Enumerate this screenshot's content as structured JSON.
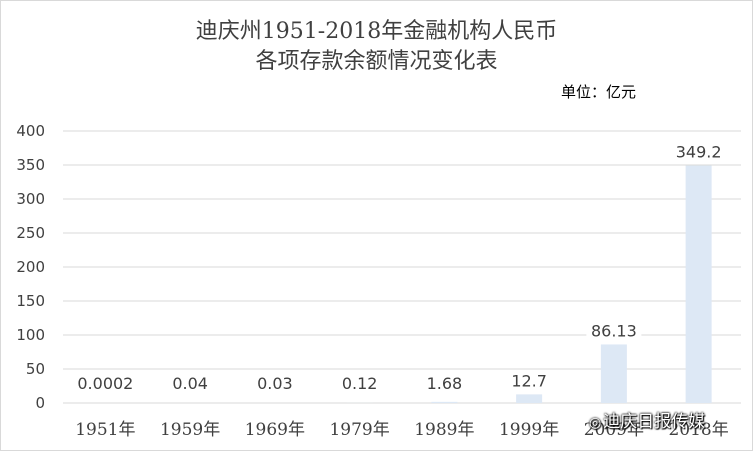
{
  "chart_data": {
    "type": "bar",
    "title_lines": [
      "迪庆州1951-2018年金融机构人民币",
      "各项存款余额情况变化表"
    ],
    "unit_label": "单位：亿元",
    "categories": [
      "1951年",
      "1959年",
      "1969年",
      "1979年",
      "1989年",
      "1999年",
      "2009年",
      "2018年"
    ],
    "values": [
      0.0002,
      0.04,
      0.03,
      0.12,
      1.68,
      12.7,
      86.13,
      349.2
    ],
    "data_labels": [
      "0.0002",
      "0.04",
      "0.03",
      "0.12",
      "1.68",
      "12.7",
      "86.13",
      "349.2"
    ],
    "ylim": [
      0,
      400
    ],
    "yticks": [
      0,
      50,
      100,
      150,
      200,
      250,
      300,
      350,
      400
    ],
    "grid": true,
    "bar_color": "#dde8f5",
    "grid_color": "#d9d9d9"
  },
  "watermark": {
    "text": "迪庆日报传媒",
    "icon": "wechat-icon"
  }
}
